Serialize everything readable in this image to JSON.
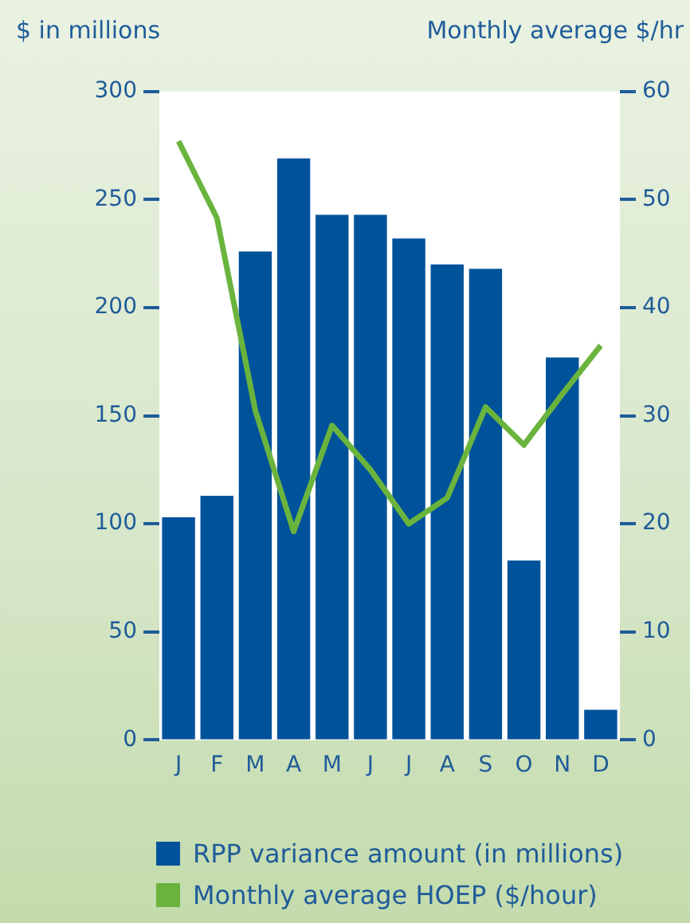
{
  "chart_data": {
    "type": "bar",
    "ylabel": "$ in millions",
    "y2label": "Monthly average $/hr",
    "categories": [
      "J",
      "F",
      "M",
      "A",
      "M",
      "J",
      "J",
      "A",
      "S",
      "O",
      "N",
      "D"
    ],
    "series": [
      {
        "name": "RPP variance amount (in millions)",
        "color": "#00529b",
        "values": [
          103,
          113,
          226,
          269,
          243,
          243,
          232,
          220,
          218,
          83,
          177,
          14
        ]
      },
      {
        "name": "Monthly average HOEP ($/hour)",
        "type": "line",
        "axis": "y2",
        "color": "#6ab43e",
        "values": [
          55.4,
          48.3,
          30.5,
          19.3,
          29.1,
          25,
          20,
          22.4,
          30.8,
          27.3,
          32,
          36.5
        ]
      }
    ],
    "ylim": [
      0,
      300
    ],
    "yticks": [
      0,
      50,
      100,
      150,
      200,
      250,
      300
    ],
    "y2lim": [
      0,
      60
    ],
    "y2ticks": [
      0,
      10,
      20,
      30,
      40,
      50,
      60
    ],
    "grid": false,
    "legend": "bottom",
    "marker": "none",
    "line_style": "solid"
  }
}
